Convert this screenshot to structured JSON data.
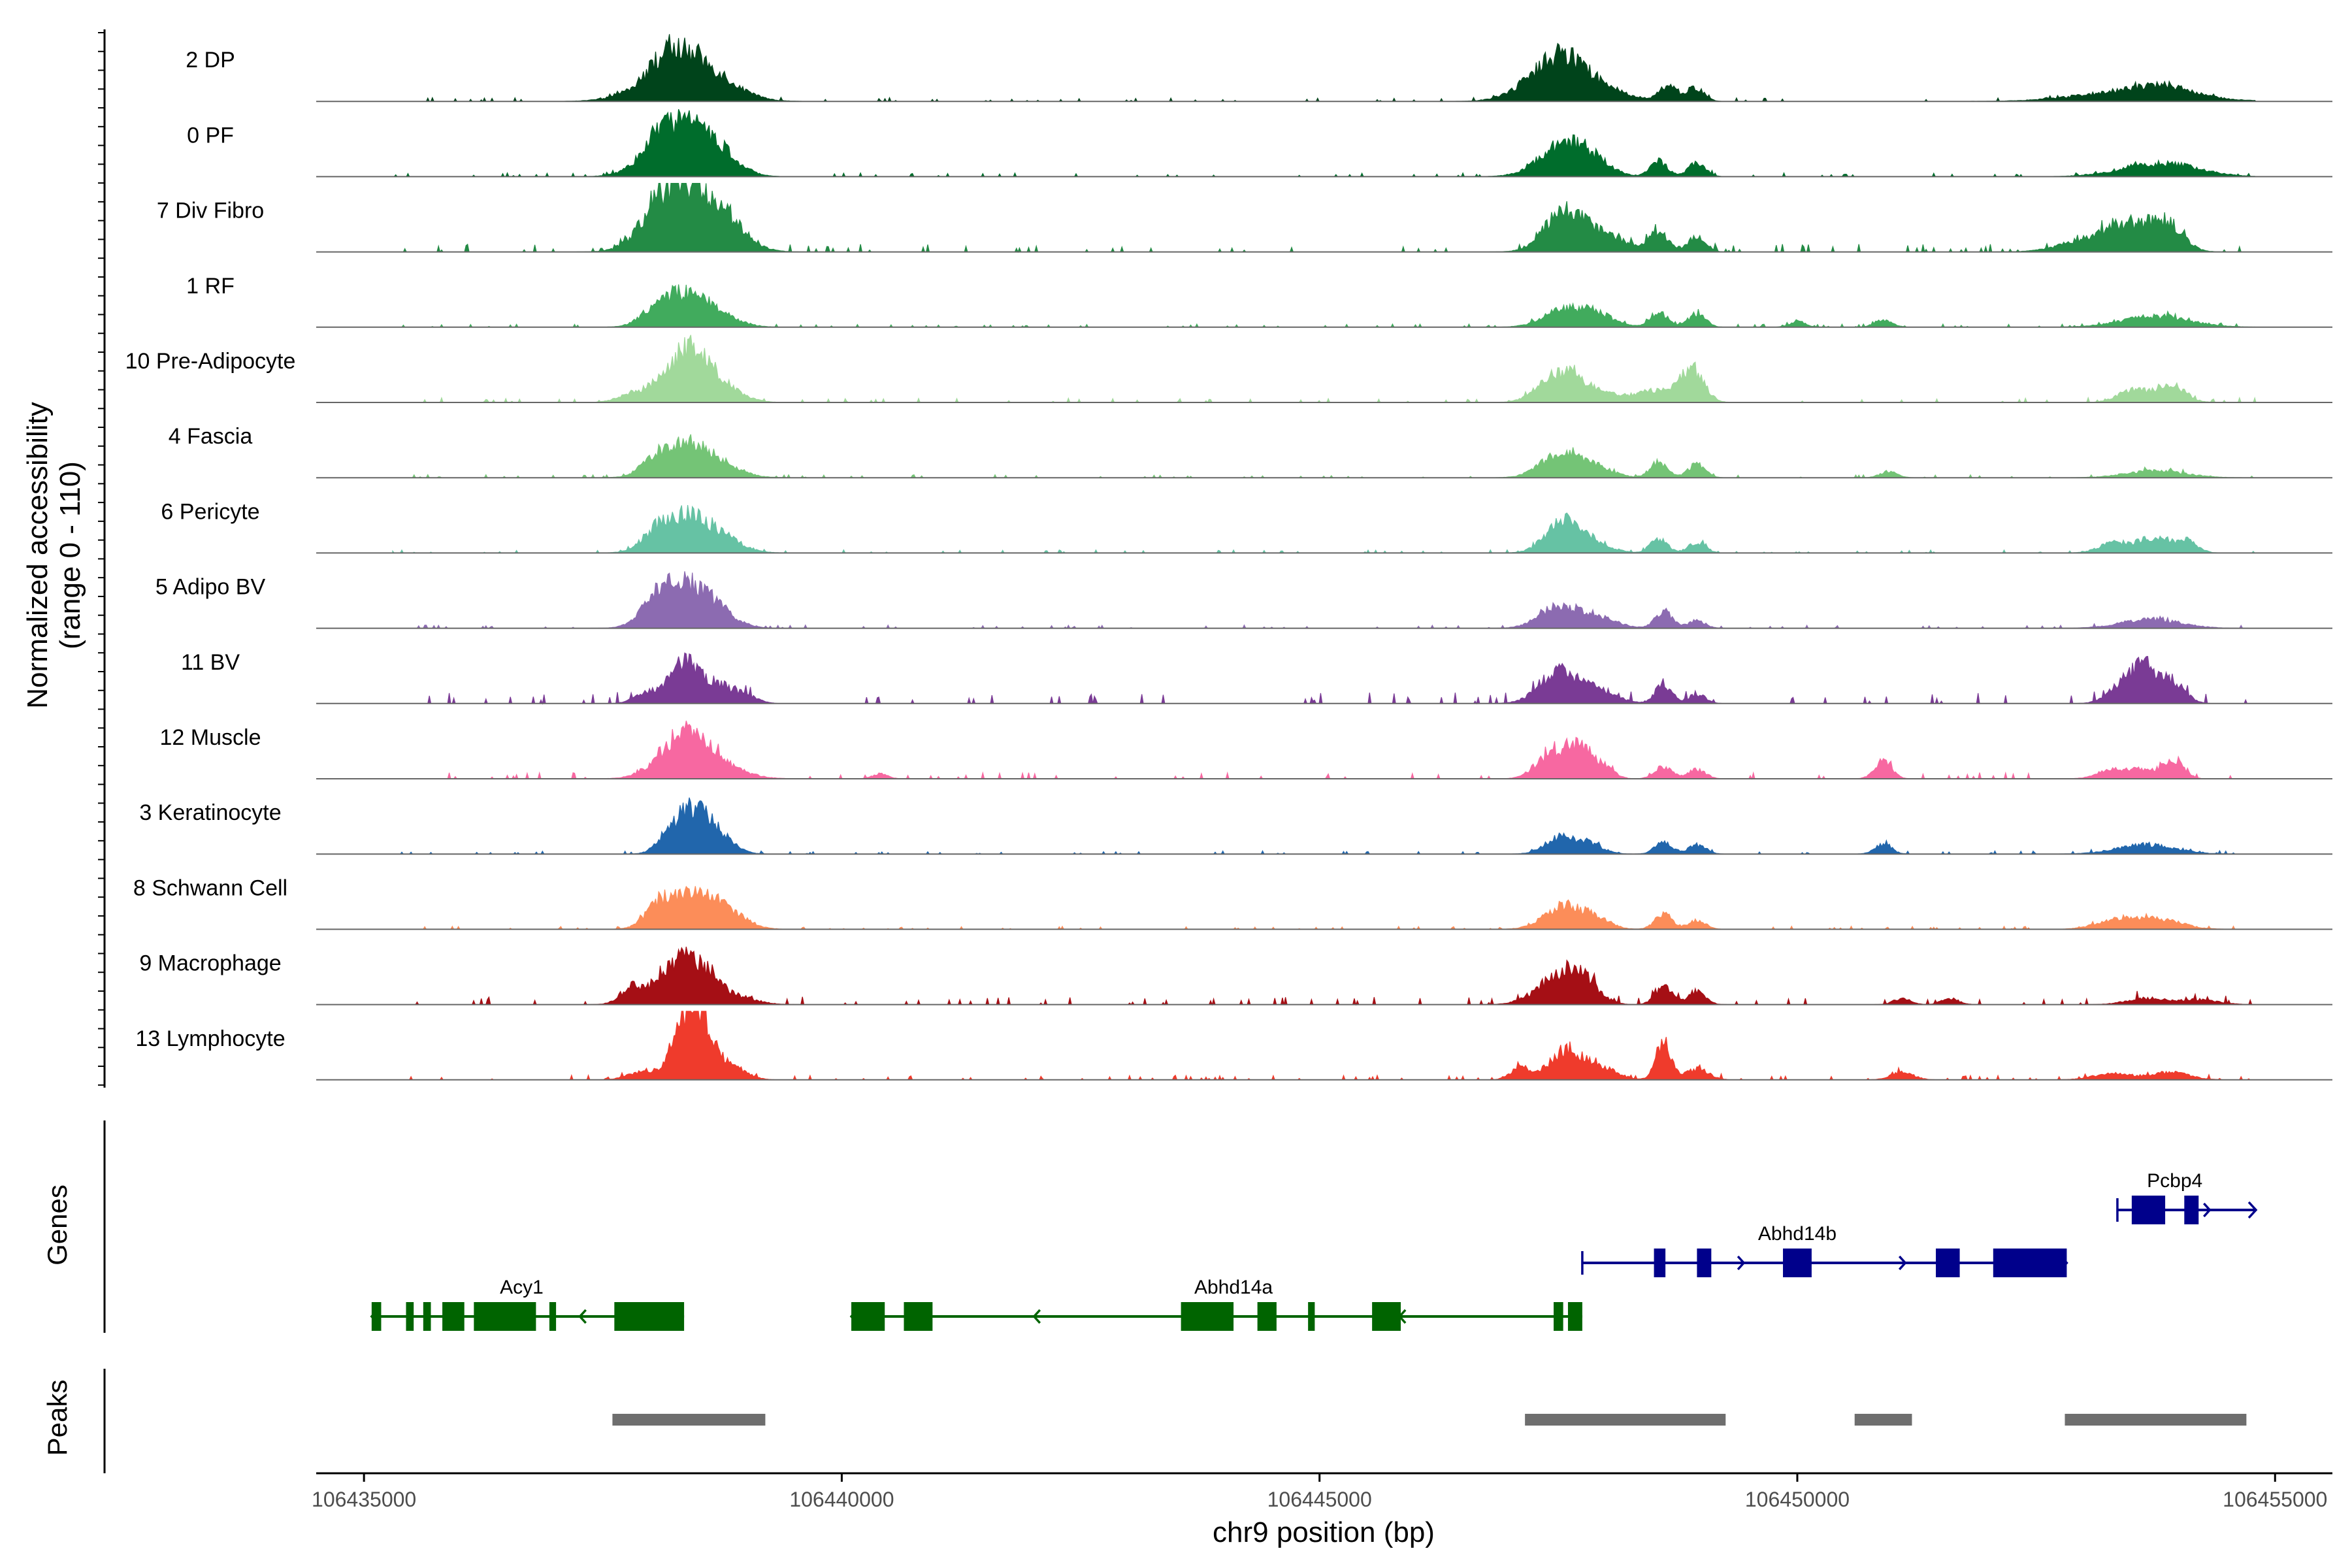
{
  "chart_data": {
    "type": "area",
    "ylabel_line1": "Normalized accessibility",
    "ylabel_line2": "(range 0 - 110)",
    "y_range": [
      0,
      110
    ],
    "xlabel": "chr9 position (bp)",
    "x_range": [
      106434500,
      106455600
    ],
    "x_ticks": [
      {
        "value": 106435000,
        "label": "106435000"
      },
      {
        "value": 106440000,
        "label": "106440000"
      },
      {
        "value": 106445000,
        "label": "106445000"
      },
      {
        "value": 106450000,
        "label": "106450000"
      },
      {
        "value": 106455000,
        "label": "106455000"
      }
    ],
    "tracks": [
      {
        "name": "2 DP",
        "color": "#00441b",
        "noise": 1.2,
        "peaks": [
          [
            106438180,
            170,
            18
          ],
          [
            106438330,
            360,
            70
          ],
          [
            106438700,
            260,
            10
          ],
          [
            106447500,
            300,
            65
          ],
          [
            106447800,
            400,
            15
          ],
          [
            106448650,
            90,
            25
          ],
          [
            106448930,
            90,
            22
          ],
          [
            106453550,
            550,
            18
          ],
          [
            106453850,
            250,
            12
          ]
        ]
      },
      {
        "name": "0 PF",
        "color": "#006d2c",
        "noise": 1.2,
        "peaks": [
          [
            106438080,
            180,
            18
          ],
          [
            106438330,
            300,
            80
          ],
          [
            106438720,
            200,
            22
          ],
          [
            106447550,
            250,
            50
          ],
          [
            106447850,
            200,
            18
          ],
          [
            106448550,
            90,
            25
          ],
          [
            106448950,
            90,
            22
          ],
          [
            106453650,
            350,
            16
          ],
          [
            106454050,
            300,
            10
          ]
        ]
      },
      {
        "name": "7 Div Fibro",
        "color": "#238b45",
        "noise": 2.5,
        "peaks": [
          [
            106438100,
            220,
            38
          ],
          [
            106438400,
            300,
            95
          ],
          [
            106438800,
            220,
            30
          ],
          [
            106447550,
            200,
            55
          ],
          [
            106447900,
            300,
            28
          ],
          [
            106448550,
            100,
            30
          ],
          [
            106448950,
            90,
            25
          ],
          [
            106453100,
            300,
            22
          ],
          [
            106453550,
            250,
            40
          ],
          [
            106453900,
            150,
            35
          ]
        ]
      },
      {
        "name": "1 RF",
        "color": "#41ab5d",
        "noise": 1.0,
        "peaks": [
          [
            106438050,
            150,
            18
          ],
          [
            106438380,
            250,
            55
          ],
          [
            106438800,
            200,
            8
          ],
          [
            106447500,
            200,
            22
          ],
          [
            106447850,
            200,
            25
          ],
          [
            106448550,
            90,
            25
          ],
          [
            106448950,
            90,
            22
          ],
          [
            106450000,
            80,
            10
          ],
          [
            106450900,
            90,
            12
          ],
          [
            106453750,
            350,
            18
          ]
        ]
      },
      {
        "name": "10 Pre-Adipocyte",
        "color": "#a1d99b",
        "noise": 1.5,
        "peaks": [
          [
            106437800,
            150,
            12
          ],
          [
            106438200,
            200,
            35
          ],
          [
            106438450,
            180,
            70
          ],
          [
            106438750,
            200,
            25
          ],
          [
            106447500,
            200,
            45
          ],
          [
            106447850,
            220,
            20
          ],
          [
            106448500,
            200,
            20
          ],
          [
            106448900,
            120,
            55
          ],
          [
            106453500,
            150,
            20
          ],
          [
            106453900,
            150,
            30
          ]
        ]
      },
      {
        "name": "4 Fascia",
        "color": "#74c476",
        "noise": 1.0,
        "peaks": [
          [
            106438050,
            150,
            18
          ],
          [
            106438380,
            250,
            55
          ],
          [
            106438800,
            200,
            12
          ],
          [
            106447500,
            200,
            35
          ],
          [
            106447850,
            200,
            18
          ],
          [
            106448550,
            90,
            25
          ],
          [
            106448950,
            90,
            22
          ],
          [
            106450950,
            90,
            10
          ],
          [
            106453750,
            300,
            12
          ]
        ]
      },
      {
        "name": "6 Pericyte",
        "color": "#66c2a4",
        "noise": 1.0,
        "peaks": [
          [
            106438050,
            150,
            20
          ],
          [
            106438380,
            250,
            60
          ],
          [
            106438800,
            200,
            15
          ],
          [
            106447550,
            180,
            50
          ],
          [
            106447850,
            200,
            14
          ],
          [
            106448550,
            90,
            22
          ],
          [
            106448950,
            90,
            18
          ],
          [
            106453300,
            150,
            15
          ],
          [
            106453750,
            200,
            25
          ],
          [
            106454100,
            100,
            15
          ]
        ]
      },
      {
        "name": "5 Adipo BV",
        "color": "#8c6bb1",
        "noise": 1.0,
        "peaks": [
          [
            106438050,
            150,
            25
          ],
          [
            106438330,
            250,
            70
          ],
          [
            106438700,
            200,
            20
          ],
          [
            106447500,
            200,
            35
          ],
          [
            106447900,
            200,
            18
          ],
          [
            106448600,
            90,
            28
          ],
          [
            106448950,
            90,
            12
          ],
          [
            106453700,
            300,
            15
          ]
        ]
      },
      {
        "name": "11 BV",
        "color": "#7a3b95",
        "noise": 3.5,
        "peaks": [
          [
            106437950,
            120,
            18
          ],
          [
            106438350,
            150,
            70
          ],
          [
            106438700,
            150,
            30
          ],
          [
            106439000,
            120,
            12
          ],
          [
            106447500,
            200,
            50
          ],
          [
            106447900,
            200,
            20
          ],
          [
            106448600,
            90,
            30
          ],
          [
            106448950,
            90,
            15
          ],
          [
            106453400,
            150,
            25
          ],
          [
            106453650,
            150,
            55
          ],
          [
            106453950,
            120,
            30
          ]
        ]
      },
      {
        "name": "12 Muscle",
        "color": "#f768a1",
        "noise": 2.0,
        "peaks": [
          [
            106438350,
            250,
            72
          ],
          [
            106438750,
            250,
            15
          ],
          [
            106440400,
            80,
            8
          ],
          [
            106447400,
            150,
            35
          ],
          [
            106447700,
            150,
            52
          ],
          [
            106448000,
            100,
            15
          ],
          [
            106448600,
            90,
            20
          ],
          [
            106448950,
            90,
            15
          ],
          [
            106450900,
            90,
            28
          ],
          [
            106453300,
            150,
            15
          ],
          [
            106453650,
            150,
            15
          ],
          [
            106453950,
            100,
            30
          ]
        ]
      },
      {
        "name": "3 Keratinocyte",
        "color": "#2166ac",
        "noise": 1.0,
        "peaks": [
          [
            106438180,
            120,
            20
          ],
          [
            106438450,
            180,
            72
          ],
          [
            106438750,
            150,
            18
          ],
          [
            106447500,
            150,
            25
          ],
          [
            106447800,
            150,
            18
          ],
          [
            106448600,
            90,
            20
          ],
          [
            106448950,
            90,
            15
          ],
          [
            106450900,
            90,
            15
          ],
          [
            106453650,
            300,
            15
          ]
        ]
      },
      {
        "name": "8 Schwann Cell",
        "color": "#fc8d59",
        "noise": 1.0,
        "peaks": [
          [
            106438100,
            150,
            30
          ],
          [
            106438450,
            250,
            55
          ],
          [
            106438800,
            200,
            20
          ],
          [
            106447550,
            200,
            38
          ],
          [
            106447900,
            150,
            15
          ],
          [
            106448600,
            90,
            25
          ],
          [
            106448950,
            90,
            15
          ],
          [
            106453300,
            200,
            12
          ],
          [
            106453750,
            250,
            18
          ]
        ]
      },
      {
        "name": "9 Macrophage",
        "color": "#a50f15",
        "noise": 2.5,
        "peaks": [
          [
            106437800,
            120,
            28
          ],
          [
            106438150,
            150,
            35
          ],
          [
            106438450,
            200,
            70
          ],
          [
            106438900,
            200,
            12
          ],
          [
            106447400,
            200,
            28
          ],
          [
            106447700,
            180,
            52
          ],
          [
            106448600,
            90,
            30
          ],
          [
            106448950,
            90,
            22
          ],
          [
            106451100,
            90,
            10
          ],
          [
            106451600,
            90,
            10
          ],
          [
            106453650,
            200,
            10
          ],
          [
            106454200,
            200,
            8
          ]
        ]
      },
      {
        "name": "13 Lymphocyte",
        "color": "#ef3b2c",
        "noise": 1.5,
        "peaks": [
          [
            106437900,
            150,
            12
          ],
          [
            106438350,
            150,
            60
          ],
          [
            106438500,
            150,
            85
          ],
          [
            106438850,
            150,
            20
          ],
          [
            106447100,
            100,
            20
          ],
          [
            106447600,
            180,
            50
          ],
          [
            106448000,
            150,
            15
          ],
          [
            106448600,
            80,
            62
          ],
          [
            106448950,
            120,
            18
          ],
          [
            106451100,
            120,
            12
          ],
          [
            106453300,
            200,
            10
          ],
          [
            106453900,
            200,
            12
          ]
        ]
      }
    ],
    "genes_label": "Genes",
    "genes": [
      {
        "name": "Acy1",
        "strand": "-",
        "color": "#006400",
        "row": 2,
        "start": 106435080,
        "end": 106438350,
        "exons": [
          [
            106435080,
            106435180
          ],
          [
            106435440,
            106435520
          ],
          [
            106435620,
            106435700
          ],
          [
            106435820,
            106436050
          ],
          [
            106436150,
            106436800
          ],
          [
            106436940,
            106437010
          ],
          [
            106437620,
            106438350
          ]
        ]
      },
      {
        "name": "Abhd14a",
        "strand": "-",
        "color": "#006400",
        "row": 2,
        "start": 106440100,
        "end": 106447750,
        "exons": [
          [
            106440100,
            106440450
          ],
          [
            106440650,
            106440950
          ],
          [
            106443550,
            106444100
          ],
          [
            106444350,
            106444550
          ],
          [
            106444880,
            106444950
          ],
          [
            106445550,
            106445850
          ],
          [
            106447450,
            106447550
          ],
          [
            106447600,
            106447750
          ]
        ]
      },
      {
        "name": "Abhd14b",
        "strand": "+",
        "color": "#00008b",
        "row": 1,
        "start": 106447750,
        "end": 106452820,
        "exons": [
          [
            106448500,
            106448620
          ],
          [
            106448950,
            106449100
          ],
          [
            106449850,
            106450150
          ],
          [
            106451450,
            106451700
          ],
          [
            106452050,
            106452820
          ]
        ]
      },
      {
        "name": "Pcbp4",
        "strand": "+",
        "color": "#00008b",
        "row": 0,
        "start": 106453350,
        "end": 106454800,
        "exons": [
          [
            106453500,
            106453850
          ],
          [
            106454050,
            106454200
          ]
        ]
      }
    ],
    "peaks_label": "Peaks",
    "peak_regions": [
      [
        106437600,
        106439200
      ],
      [
        106447150,
        106449250
      ],
      [
        106450600,
        106451200
      ],
      [
        106452800,
        106454700
      ]
    ],
    "colors": {
      "axis": "#000000",
      "baseline": "#666666",
      "peak_bar": "#6e6e6e",
      "tick_text": "#4d4d4d"
    }
  }
}
